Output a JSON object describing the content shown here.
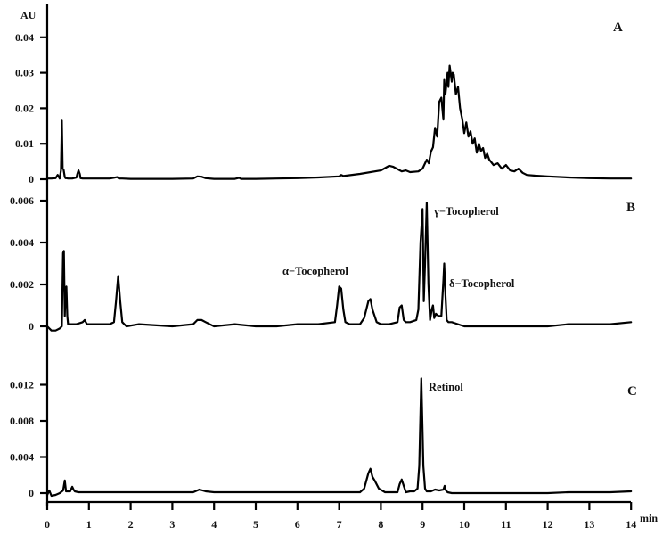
{
  "chart_data": {
    "type": "line",
    "title": "",
    "xlabel": "min",
    "ylabel": "AU",
    "x_ticks": [
      "0",
      "1",
      "2",
      "3",
      "4",
      "5",
      "6",
      "7",
      "8",
      "9",
      "10",
      "11",
      "12",
      "13",
      "14"
    ],
    "xlim": [
      0,
      14
    ],
    "grid": false,
    "panels": [
      {
        "id": "A",
        "label": "A",
        "y_ticks": [
          "0",
          "0.01",
          "0.02",
          "0.03",
          "0.04"
        ],
        "y_tick_values": [
          0,
          0.01,
          0.02,
          0.03,
          0.04
        ],
        "ylim": [
          0,
          0.045
        ],
        "peaks": [],
        "series": {
          "x": [
            0.0,
            0.1,
            0.2,
            0.25,
            0.3,
            0.33,
            0.35,
            0.37,
            0.39,
            0.42,
            0.44,
            0.46,
            0.5,
            0.6,
            0.7,
            0.72,
            0.75,
            0.78,
            0.8,
            0.85,
            1.0,
            1.2,
            1.5,
            1.68,
            1.72,
            1.8,
            2.0,
            2.5,
            3.0,
            3.5,
            3.6,
            3.7,
            3.8,
            4.0,
            4.5,
            4.6,
            4.65,
            4.7,
            5.0,
            5.5,
            6.0,
            6.5,
            7.0,
            7.05,
            7.1,
            7.5,
            8.0,
            8.2,
            8.3,
            8.5,
            8.6,
            8.7,
            8.9,
            9.0,
            9.1,
            9.15,
            9.2,
            9.25,
            9.3,
            9.35,
            9.4,
            9.45,
            9.5,
            9.52,
            9.55,
            9.6,
            9.62,
            9.65,
            9.7,
            9.72,
            9.75,
            9.8,
            9.85,
            9.9,
            9.95,
            10.0,
            10.05,
            10.1,
            10.15,
            10.2,
            10.25,
            10.3,
            10.35,
            10.4,
            10.45,
            10.5,
            10.55,
            10.6,
            10.7,
            10.8,
            10.9,
            11.0,
            11.1,
            11.2,
            11.3,
            11.4,
            11.5,
            11.7,
            12.0,
            12.5,
            13.0,
            13.5,
            14.0
          ],
          "y": [
            0.0002,
            0.0002,
            0.0003,
            0.0012,
            0.0002,
            0.0025,
            0.0165,
            0.003,
            0.0028,
            0.0006,
            0.0003,
            0.0003,
            0.0002,
            0.0002,
            0.0005,
            0.0014,
            0.0025,
            0.0015,
            0.0003,
            0.0002,
            0.0002,
            0.0002,
            0.0002,
            0.0006,
            0.0002,
            0.0002,
            0.0001,
            0.0001,
            0.0001,
            0.0002,
            0.0008,
            0.0007,
            0.0003,
            0.0001,
            0.0001,
            0.0004,
            0.0001,
            0.0001,
            0.0001,
            0.0002,
            0.0003,
            0.0005,
            0.0008,
            0.0012,
            0.0009,
            0.0015,
            0.0025,
            0.0038,
            0.0035,
            0.0022,
            0.0025,
            0.002,
            0.0022,
            0.003,
            0.0055,
            0.0045,
            0.0078,
            0.009,
            0.0145,
            0.012,
            0.0218,
            0.023,
            0.0168,
            0.028,
            0.024,
            0.03,
            0.026,
            0.032,
            0.0275,
            0.03,
            0.0295,
            0.024,
            0.026,
            0.02,
            0.017,
            0.013,
            0.016,
            0.012,
            0.0135,
            0.01,
            0.0115,
            0.0075,
            0.01,
            0.008,
            0.0088,
            0.006,
            0.0072,
            0.0055,
            0.004,
            0.0045,
            0.003,
            0.004,
            0.0025,
            0.0022,
            0.003,
            0.0018,
            0.0012,
            0.001,
            0.0008,
            0.0005,
            0.0003,
            0.0002,
            0.0002
          ]
        }
      },
      {
        "id": "B",
        "label": "B",
        "y_ticks": [
          "0",
          "0.002",
          "0.004",
          "0.006"
        ],
        "y_tick_values": [
          0,
          0.002,
          0.004,
          0.006
        ],
        "ylim": [
          -0.0002,
          0.0068
        ],
        "peaks": [
          {
            "name": "alpha-tocopherol",
            "text": "α−Tocopherol",
            "rt": 7.03,
            "height": 0.00195
          },
          {
            "name": "gamma-tocopherol",
            "text": "γ−Tocopherol",
            "rt": 9.1,
            "height": 0.0059
          },
          {
            "name": "delta-tocopherol",
            "text": "δ−Tocopherol",
            "rt": 9.52,
            "height": 0.003
          }
        ],
        "series": {
          "x": [
            0.0,
            0.1,
            0.2,
            0.3,
            0.35,
            0.38,
            0.4,
            0.42,
            0.44,
            0.46,
            0.48,
            0.5,
            0.55,
            0.7,
            0.85,
            0.9,
            0.95,
            1.1,
            1.5,
            1.6,
            1.65,
            1.7,
            1.75,
            1.8,
            1.9,
            2.2,
            3.0,
            3.5,
            3.6,
            3.7,
            3.8,
            4.0,
            4.5,
            5.0,
            5.5,
            6.0,
            6.5,
            6.9,
            6.95,
            7.0,
            7.05,
            7.1,
            7.15,
            7.25,
            7.5,
            7.6,
            7.7,
            7.75,
            7.8,
            7.85,
            7.9,
            8.0,
            8.2,
            8.4,
            8.45,
            8.5,
            8.55,
            8.6,
            8.7,
            8.85,
            8.9,
            8.95,
            9.0,
            9.03,
            9.06,
            9.1,
            9.14,
            9.18,
            9.22,
            9.25,
            9.28,
            9.32,
            9.38,
            9.45,
            9.5,
            9.52,
            9.55,
            9.58,
            9.62,
            9.7,
            10.0,
            10.5,
            11.0,
            11.5,
            12.0,
            12.5,
            13.0,
            13.5,
            14.0
          ],
          "y": [
            0.0,
            -0.0002,
            -0.0002,
            -0.0001,
            0.0,
            0.0035,
            0.0036,
            0.0005,
            0.0018,
            0.0019,
            0.0005,
            0.0001,
            0.0001,
            0.0001,
            0.0002,
            0.0003,
            0.0001,
            0.0001,
            0.0001,
            0.0002,
            0.0012,
            0.0024,
            0.0012,
            0.0002,
            0.0,
            0.0001,
            0.0,
            0.0001,
            0.0003,
            0.0003,
            0.0002,
            0.0,
            0.0001,
            0.0,
            0.0,
            0.0001,
            0.0001,
            0.0002,
            0.001,
            0.0019,
            0.0018,
            0.0008,
            0.0002,
            0.0001,
            0.0001,
            0.0004,
            0.0012,
            0.0013,
            0.0008,
            0.0005,
            0.0002,
            0.0001,
            0.0001,
            0.0002,
            0.0009,
            0.001,
            0.0003,
            0.0002,
            0.0002,
            0.0003,
            0.0008,
            0.004,
            0.0056,
            0.0012,
            0.003,
            0.0059,
            0.002,
            0.0003,
            0.0008,
            0.001,
            0.0004,
            0.0006,
            0.0005,
            0.0005,
            0.0022,
            0.003,
            0.0015,
            0.0003,
            0.0002,
            0.0002,
            0.0,
            0.0,
            0.0,
            0.0,
            0.0,
            0.0001,
            0.0001,
            0.0001,
            0.0002
          ]
        }
      },
      {
        "id": "C",
        "label": "C",
        "y_ticks": [
          "0",
          "0.004",
          "0.008",
          "0.012"
        ],
        "y_tick_values": [
          0,
          0.004,
          0.008,
          0.012
        ],
        "ylim": [
          -0.0005,
          0.0145
        ],
        "peaks": [
          {
            "name": "retinol",
            "text": "Retinol",
            "rt": 8.97,
            "height": 0.0127
          }
        ],
        "series": {
          "x": [
            0.0,
            0.05,
            0.1,
            0.2,
            0.3,
            0.38,
            0.42,
            0.45,
            0.48,
            0.55,
            0.6,
            0.63,
            0.66,
            0.75,
            1.0,
            1.5,
            2.0,
            2.5,
            3.0,
            3.5,
            3.65,
            3.8,
            4.0,
            5.0,
            6.0,
            7.0,
            7.5,
            7.6,
            7.7,
            7.75,
            7.8,
            7.85,
            7.95,
            8.1,
            8.4,
            8.45,
            8.5,
            8.55,
            8.6,
            8.7,
            8.8,
            8.88,
            8.92,
            8.95,
            8.97,
            8.99,
            9.02,
            9.06,
            9.1,
            9.2,
            9.3,
            9.4,
            9.5,
            9.53,
            9.56,
            9.6,
            9.7,
            10.0,
            10.5,
            11.0,
            11.5,
            12.0,
            12.5,
            13.0,
            13.5,
            14.0
          ],
          "y": [
            -0.0002,
            0.0003,
            -0.0003,
            -0.0002,
            0.0,
            0.0003,
            0.0014,
            0.0002,
            0.0002,
            0.0002,
            0.0007,
            0.0004,
            0.0002,
            0.0001,
            0.0001,
            0.0001,
            0.0001,
            0.0001,
            0.0001,
            0.0001,
            0.0004,
            0.0002,
            0.0001,
            0.0001,
            0.0001,
            0.0001,
            0.0001,
            0.0005,
            0.0022,
            0.0027,
            0.0018,
            0.0014,
            0.0005,
            0.0001,
            0.0001,
            0.001,
            0.0015,
            0.0008,
            0.0001,
            0.0002,
            0.0002,
            0.0005,
            0.003,
            0.009,
            0.0127,
            0.009,
            0.003,
            0.0005,
            0.0002,
            0.0002,
            0.0004,
            0.0003,
            0.0004,
            0.0008,
            0.0003,
            0.0001,
            0.0,
            0.0,
            0.0,
            0.0,
            0.0,
            0.0,
            0.0001,
            0.0001,
            0.0001,
            0.0002
          ]
        }
      }
    ]
  },
  "axis": {
    "y_unit_label": "AU",
    "x_unit_label": "min"
  }
}
